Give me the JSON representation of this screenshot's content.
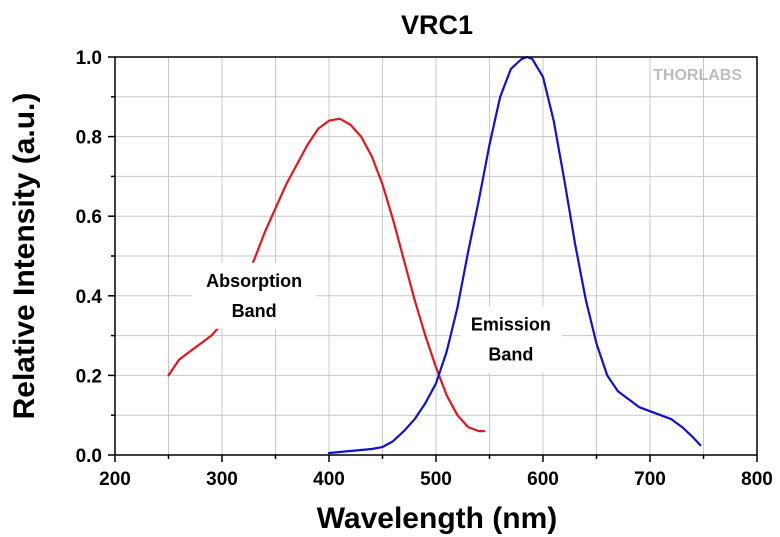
{
  "chart_data": {
    "type": "line",
    "title": "VRC1",
    "xlabel": "Wavelength (nm)",
    "ylabel": "Relative Intensity (a.u.)",
    "xlim": [
      200,
      800
    ],
    "ylim": [
      0,
      1.0
    ],
    "x_ticks": [
      200,
      300,
      400,
      500,
      600,
      700,
      800
    ],
    "x_tick_labels": [
      "200",
      "300",
      "400",
      "500",
      "600",
      "700",
      "800"
    ],
    "y_ticks": [
      0,
      0.2,
      0.4,
      0.6,
      0.8,
      1.0
    ],
    "y_tick_labels": [
      "0.0",
      "0.2",
      "0.4",
      "0.6",
      "0.8",
      "1.0"
    ],
    "grid": true,
    "series": [
      {
        "color": "#e8141b",
        "x": [
          250,
          260,
          270,
          280,
          290,
          300,
          310,
          320,
          330,
          340,
          350,
          360,
          370,
          380,
          390,
          400,
          410,
          420,
          430,
          440,
          450,
          460,
          470,
          480,
          490,
          500,
          510,
          520,
          530,
          540,
          545
        ],
        "y": [
          0.2,
          0.24,
          0.26,
          0.28,
          0.3,
          0.33,
          0.38,
          0.43,
          0.49,
          0.56,
          0.62,
          0.68,
          0.73,
          0.78,
          0.82,
          0.84,
          0.845,
          0.83,
          0.8,
          0.75,
          0.68,
          0.59,
          0.49,
          0.39,
          0.3,
          0.22,
          0.15,
          0.1,
          0.07,
          0.06,
          0.06
        ]
      },
      {
        "color": "#1010d8",
        "x": [
          400,
          420,
          440,
          450,
          460,
          470,
          480,
          490,
          500,
          510,
          520,
          530,
          540,
          550,
          560,
          570,
          580,
          585,
          590,
          600,
          610,
          620,
          630,
          640,
          650,
          660,
          670,
          680,
          690,
          700,
          710,
          720,
          730,
          740,
          747
        ],
        "y": [
          0.005,
          0.01,
          0.015,
          0.02,
          0.035,
          0.06,
          0.09,
          0.13,
          0.18,
          0.26,
          0.37,
          0.51,
          0.64,
          0.78,
          0.9,
          0.97,
          0.995,
          1.0,
          0.995,
          0.95,
          0.84,
          0.69,
          0.53,
          0.39,
          0.28,
          0.2,
          0.16,
          0.14,
          0.12,
          0.11,
          0.1,
          0.09,
          0.07,
          0.045,
          0.025
        ]
      }
    ],
    "annotations": [
      {
        "lines": [
          "Absorption",
          "Band"
        ],
        "x": 330,
        "y": 0.4
      },
      {
        "lines": [
          "Emission",
          "Band"
        ],
        "x": 570,
        "y": 0.29
      }
    ],
    "logo": "THORLABS"
  }
}
